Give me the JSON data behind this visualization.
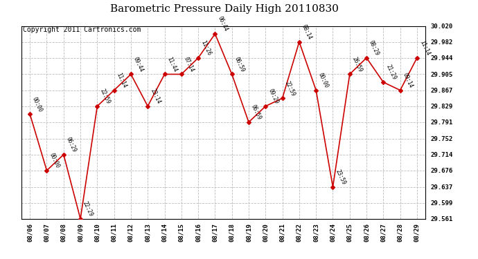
{
  "title": "Barometric Pressure Daily High 20110830",
  "copyright": "Copyright 2011 Cartronics.com",
  "x_labels": [
    "08/06",
    "08/07",
    "08/08",
    "08/09",
    "08/10",
    "08/11",
    "08/12",
    "08/13",
    "08/14",
    "08/15",
    "08/16",
    "08/17",
    "08/18",
    "08/19",
    "08/20",
    "08/21",
    "08/22",
    "08/23",
    "08/24",
    "08/25",
    "08/26",
    "08/27",
    "08/28",
    "08/29"
  ],
  "y_values": [
    29.81,
    29.676,
    29.714,
    29.561,
    29.829,
    29.867,
    29.905,
    29.829,
    29.905,
    29.905,
    29.944,
    30.001,
    29.905,
    29.791,
    29.829,
    29.848,
    29.982,
    29.867,
    29.637,
    29.905,
    29.944,
    29.886,
    29.867,
    29.944
  ],
  "time_labels": [
    "00:00",
    "00:00",
    "06:29",
    "22:29",
    "22:59",
    "11:14",
    "09:44",
    "23:14",
    "11:44",
    "07:14",
    "11:26",
    "06:44",
    "06:59",
    "06:59",
    "09:29",
    "22:59",
    "08:14",
    "00:00",
    "23:59",
    "26:59",
    "08:29",
    "21:29",
    "09:14",
    "11:14"
  ],
  "y_ticks": [
    29.561,
    29.599,
    29.637,
    29.676,
    29.714,
    29.752,
    29.791,
    29.829,
    29.867,
    29.905,
    29.944,
    29.982,
    30.02
  ],
  "y_min": 29.561,
  "y_max": 30.02,
  "line_color": "#cc0000",
  "marker_color": "#cc0000",
  "bg_color": "#ffffff",
  "grid_color": "#bbbbbb",
  "title_fontsize": 11,
  "copyright_fontsize": 7
}
